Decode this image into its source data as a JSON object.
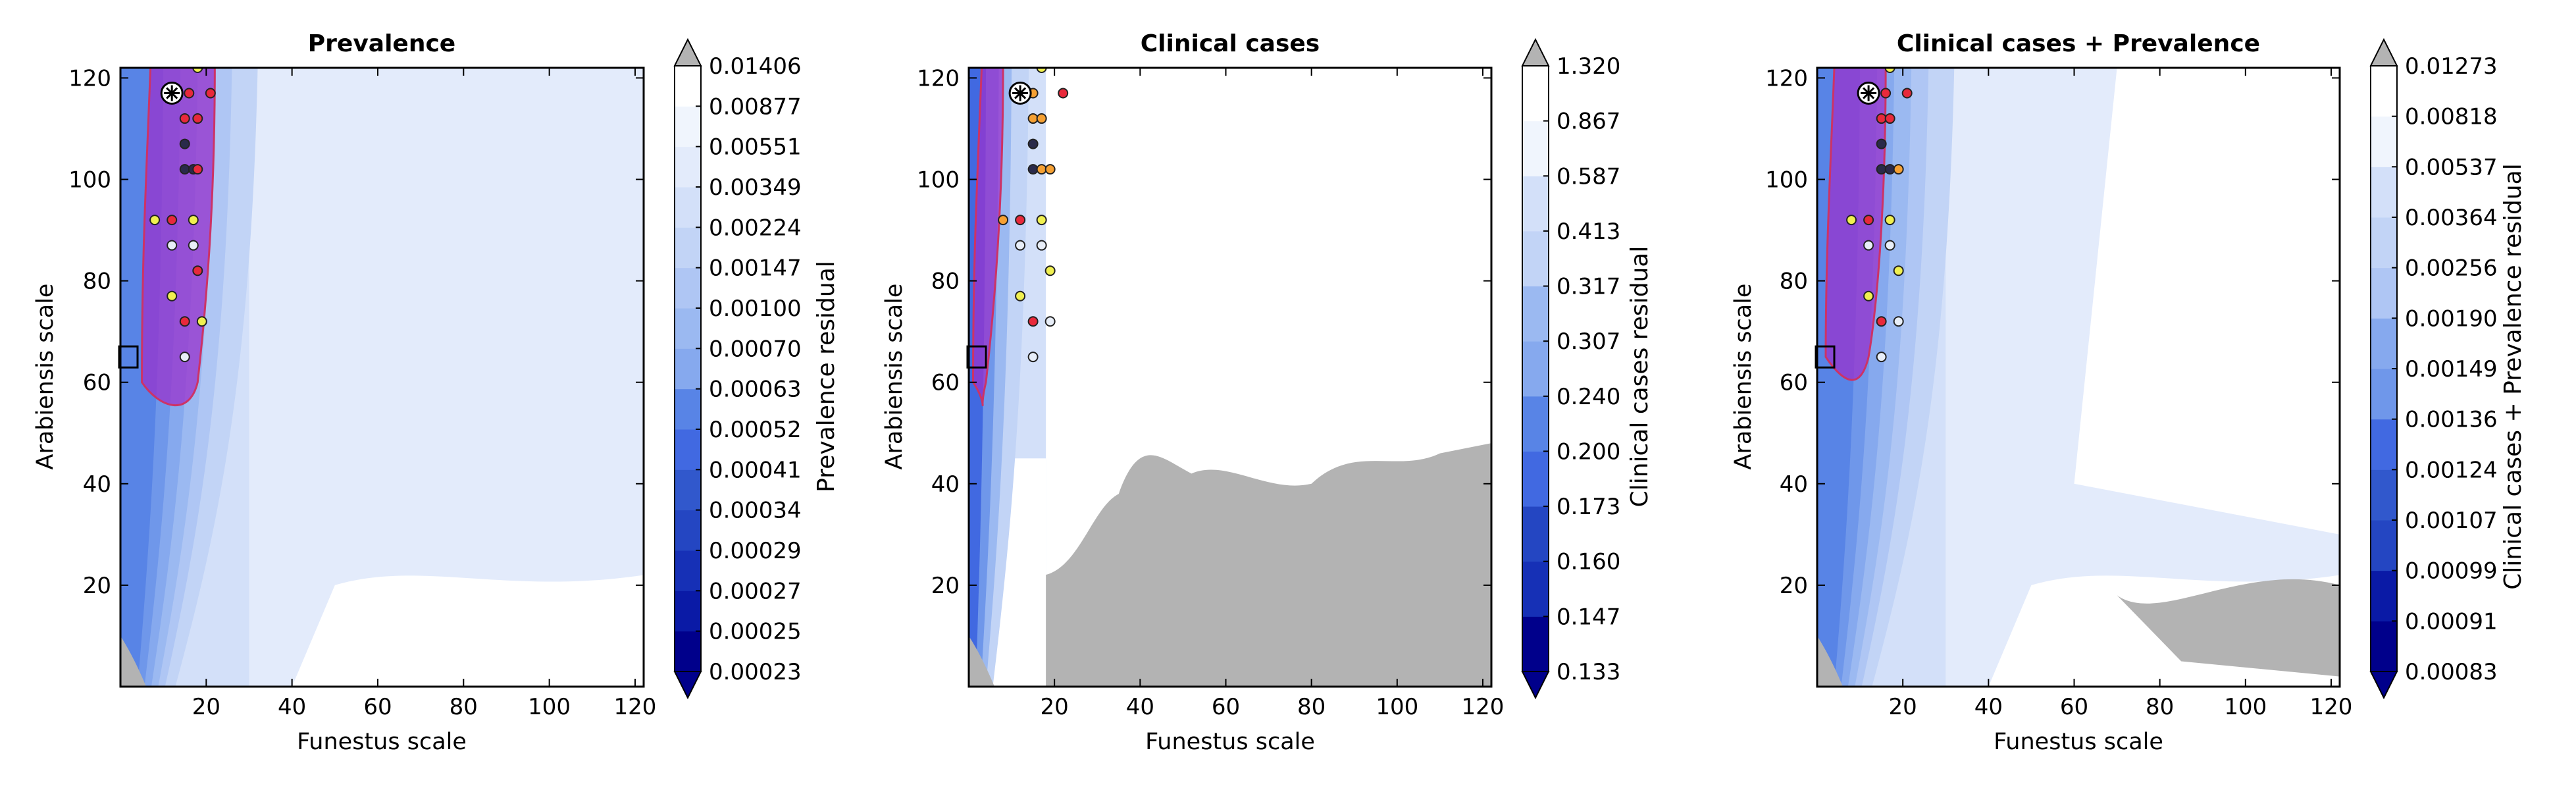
{
  "chart_data": [
    {
      "type": "heatmap",
      "title": "Prevalence",
      "xlabel": "Funestus scale",
      "ylabel": "Arabiensis scale",
      "xlim": [
        0,
        122
      ],
      "ylim": [
        0,
        122
      ],
      "xticks": [
        "20",
        "40",
        "60",
        "80",
        "100",
        "120"
      ],
      "yticks": [
        "20",
        "40",
        "60",
        "80",
        "100",
        "120"
      ],
      "colorbar": {
        "label": "Prevalence residual",
        "levels": [
          "0.00023",
          "0.00025",
          "0.00027",
          "0.00029",
          "0.00034",
          "0.00041",
          "0.00052",
          "0.00063",
          "0.00070",
          "0.00100",
          "0.00147",
          "0.00224",
          "0.00349",
          "0.00551",
          "0.00877",
          "0.01406"
        ]
      },
      "highlight_region": {
        "x": [
          5,
          22
        ],
        "y": [
          55,
          122
        ]
      },
      "best_fit": {
        "x": 12,
        "y": 117
      },
      "points": [
        {
          "x": 18,
          "y": 122,
          "c": "yellow"
        },
        {
          "x": 16,
          "y": 117,
          "c": "red"
        },
        {
          "x": 21,
          "y": 117,
          "c": "red"
        },
        {
          "x": 15,
          "y": 112,
          "c": "red"
        },
        {
          "x": 18,
          "y": 112,
          "c": "red"
        },
        {
          "x": 15,
          "y": 107,
          "c": "dark"
        },
        {
          "x": 15,
          "y": 102,
          "c": "dark"
        },
        {
          "x": 17,
          "y": 102,
          "c": "dark"
        },
        {
          "x": 18,
          "y": 102,
          "c": "red"
        },
        {
          "x": 8,
          "y": 92,
          "c": "yellow"
        },
        {
          "x": 12,
          "y": 92,
          "c": "red"
        },
        {
          "x": 17,
          "y": 92,
          "c": "yellow"
        },
        {
          "x": 12,
          "y": 87,
          "c": "white"
        },
        {
          "x": 17,
          "y": 87,
          "c": "white"
        },
        {
          "x": 18,
          "y": 82,
          "c": "red"
        },
        {
          "x": 12,
          "y": 77,
          "c": "yellow"
        },
        {
          "x": 15,
          "y": 72,
          "c": "red"
        },
        {
          "x": 19,
          "y": 72,
          "c": "yellow"
        },
        {
          "x": 15,
          "y": 65,
          "c": "white"
        }
      ]
    },
    {
      "type": "heatmap",
      "title": "Clinical cases",
      "xlabel": "Funestus scale",
      "ylabel": "Arabiensis scale",
      "xlim": [
        0,
        122
      ],
      "ylim": [
        0,
        122
      ],
      "xticks": [
        "20",
        "40",
        "60",
        "80",
        "100",
        "120"
      ],
      "yticks": [
        "20",
        "40",
        "60",
        "80",
        "100",
        "120"
      ],
      "colorbar": {
        "label": "Clinical cases residual",
        "levels": [
          "0.133",
          "0.147",
          "0.160",
          "0.173",
          "0.200",
          "0.240",
          "0.307",
          "0.317",
          "0.413",
          "0.587",
          "0.867",
          "1.320"
        ]
      },
      "highlight_region": {
        "x": [
          1,
          8
        ],
        "y": [
          55,
          122
        ]
      },
      "best_fit": {
        "x": 12,
        "y": 117
      },
      "points": [
        {
          "x": 17,
          "y": 122,
          "c": "yellow"
        },
        {
          "x": 15,
          "y": 117,
          "c": "orange"
        },
        {
          "x": 22,
          "y": 117,
          "c": "red"
        },
        {
          "x": 15,
          "y": 112,
          "c": "orange"
        },
        {
          "x": 17,
          "y": 112,
          "c": "orange"
        },
        {
          "x": 15,
          "y": 107,
          "c": "dark"
        },
        {
          "x": 15,
          "y": 102,
          "c": "dark"
        },
        {
          "x": 17,
          "y": 102,
          "c": "orange"
        },
        {
          "x": 19,
          "y": 102,
          "c": "orange"
        },
        {
          "x": 8,
          "y": 92,
          "c": "orange"
        },
        {
          "x": 12,
          "y": 92,
          "c": "red"
        },
        {
          "x": 17,
          "y": 92,
          "c": "yellow"
        },
        {
          "x": 12,
          "y": 87,
          "c": "white"
        },
        {
          "x": 17,
          "y": 87,
          "c": "white"
        },
        {
          "x": 19,
          "y": 82,
          "c": "yellow"
        },
        {
          "x": 12,
          "y": 77,
          "c": "yellow"
        },
        {
          "x": 15,
          "y": 72,
          "c": "red"
        },
        {
          "x": 19,
          "y": 72,
          "c": "white"
        },
        {
          "x": 15,
          "y": 65,
          "c": "white"
        }
      ]
    },
    {
      "type": "heatmap",
      "title": "Clinical cases + Prevalence",
      "xlabel": "Funestus scale",
      "ylabel": "Arabiensis scale",
      "xlim": [
        0,
        122
      ],
      "ylim": [
        0,
        122
      ],
      "xticks": [
        "20",
        "40",
        "60",
        "80",
        "100",
        "120"
      ],
      "yticks": [
        "20",
        "40",
        "60",
        "80",
        "100",
        "120"
      ],
      "colorbar": {
        "label": "Clinical cases + Prevalence residual",
        "levels": [
          "0.00083",
          "0.00091",
          "0.00099",
          "0.00107",
          "0.00124",
          "0.00136",
          "0.00149",
          "0.00190",
          "0.00256",
          "0.00364",
          "0.00537",
          "0.00818",
          "0.01273"
        ]
      },
      "highlight_region": {
        "x": [
          2,
          16
        ],
        "y": [
          60,
          122
        ]
      },
      "best_fit": {
        "x": 12,
        "y": 117
      },
      "points": [
        {
          "x": 17,
          "y": 122,
          "c": "yellow"
        },
        {
          "x": 16,
          "y": 117,
          "c": "red"
        },
        {
          "x": 21,
          "y": 117,
          "c": "red"
        },
        {
          "x": 15,
          "y": 112,
          "c": "red"
        },
        {
          "x": 17,
          "y": 112,
          "c": "red"
        },
        {
          "x": 15,
          "y": 107,
          "c": "dark"
        },
        {
          "x": 15,
          "y": 102,
          "c": "dark"
        },
        {
          "x": 17,
          "y": 102,
          "c": "dark"
        },
        {
          "x": 19,
          "y": 102,
          "c": "orange"
        },
        {
          "x": 8,
          "y": 92,
          "c": "yellow"
        },
        {
          "x": 12,
          "y": 92,
          "c": "red"
        },
        {
          "x": 17,
          "y": 92,
          "c": "yellow"
        },
        {
          "x": 12,
          "y": 87,
          "c": "white"
        },
        {
          "x": 17,
          "y": 87,
          "c": "white"
        },
        {
          "x": 19,
          "y": 82,
          "c": "yellow"
        },
        {
          "x": 12,
          "y": 77,
          "c": "yellow"
        },
        {
          "x": 15,
          "y": 72,
          "c": "red"
        },
        {
          "x": 19,
          "y": 72,
          "c": "white"
        },
        {
          "x": 15,
          "y": 65,
          "c": "white"
        }
      ]
    }
  ],
  "colors": {
    "cmap": [
      "#00008b",
      "#0a1aa6",
      "#1630b6",
      "#2446c2",
      "#3158cc",
      "#4169e1",
      "#5884e6",
      "#6f97ea",
      "#86a9ee",
      "#9bb9f1",
      "#afc6f4",
      "#c2d4f6",
      "#d3e0f9",
      "#e3ebfb",
      "#f0f5fd",
      "#ffffff"
    ],
    "grey": "#b3b3b3",
    "highlight_fill": "#9933cc",
    "highlight_stroke": "#cc3366",
    "point_red": "#e8293b",
    "point_yellow": "#f0f050",
    "point_orange": "#f5a033",
    "point_white": "#e8eef8",
    "point_dark": "#2a2a4a"
  }
}
